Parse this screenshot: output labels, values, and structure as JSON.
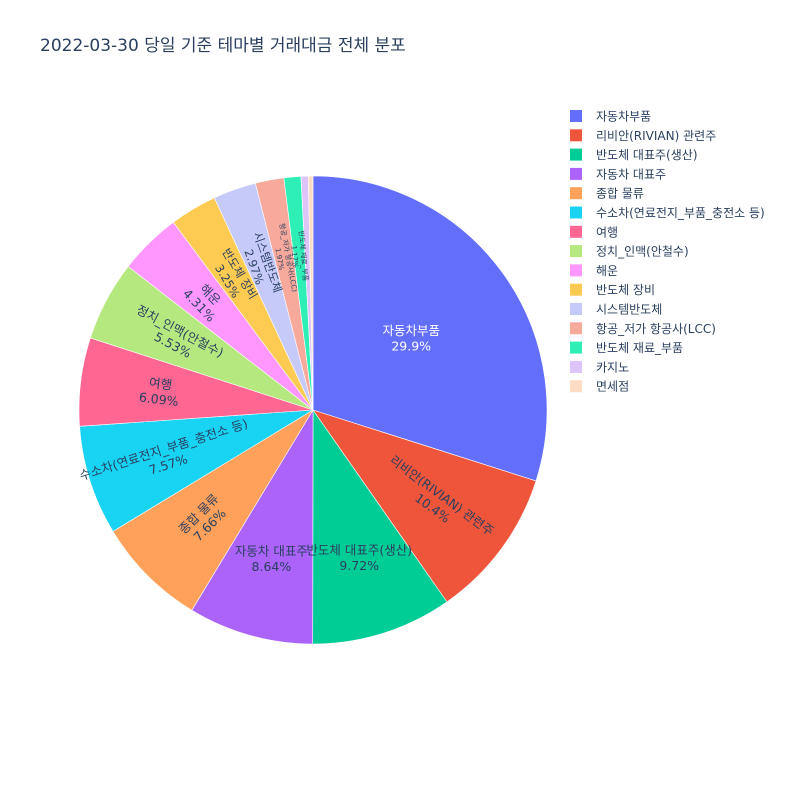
{
  "chart_data": {
    "type": "pie",
    "title": "2022-03-30 당일 기준 테마별 거래대금 전체 분포",
    "legend_position": "right",
    "slices": [
      {
        "label": "자동차부품",
        "percent": 29.9,
        "percent_text": "29.9%",
        "color": "#636efa"
      },
      {
        "label": "리비안(RIVIAN) 관련주",
        "percent": 10.4,
        "percent_text": "10.4%",
        "color": "#ef553b"
      },
      {
        "label": "반도체 대표주(생산)",
        "percent": 9.72,
        "percent_text": "9.72%",
        "color": "#00cc96"
      },
      {
        "label": "자동차 대표주",
        "percent": 8.64,
        "percent_text": "8.64%",
        "color": "#ab63fa"
      },
      {
        "label": "종합 물류",
        "percent": 7.66,
        "percent_text": "7.66%",
        "color": "#ffa15a"
      },
      {
        "label": "수소차(연료전지_부품_충전소 등)",
        "percent": 7.57,
        "percent_text": "7.57%",
        "color": "#19d3f3"
      },
      {
        "label": "여행",
        "percent": 6.09,
        "percent_text": "6.09%",
        "color": "#ff6692"
      },
      {
        "label": "정치_인맥(안철수)",
        "percent": 5.53,
        "percent_text": "5.53%",
        "color": "#b6e880"
      },
      {
        "label": "해운",
        "percent": 4.31,
        "percent_text": "4.31%",
        "color": "#ff97ff"
      },
      {
        "label": "반도체 장비",
        "percent": 3.25,
        "percent_text": "3.25%",
        "color": "#fecb52"
      },
      {
        "label": "시스템반도체",
        "percent": 2.97,
        "percent_text": "2.97%",
        "color": "#c6caf8"
      },
      {
        "label": "항공_저가 항공사(LCC)",
        "percent": 1.97,
        "percent_text": "1.97%",
        "color": "#f7a99c"
      },
      {
        "label": "반도체 재료_부품",
        "percent": 1.17,
        "percent_text": "1.17%",
        "color": "#2ef0b6"
      },
      {
        "label": "카지노",
        "percent": 0.5,
        "percent_text": "",
        "color": "#ddc4fb"
      },
      {
        "label": "면세점",
        "percent": 0.32,
        "percent_text": "",
        "color": "#fddcc4"
      }
    ]
  }
}
